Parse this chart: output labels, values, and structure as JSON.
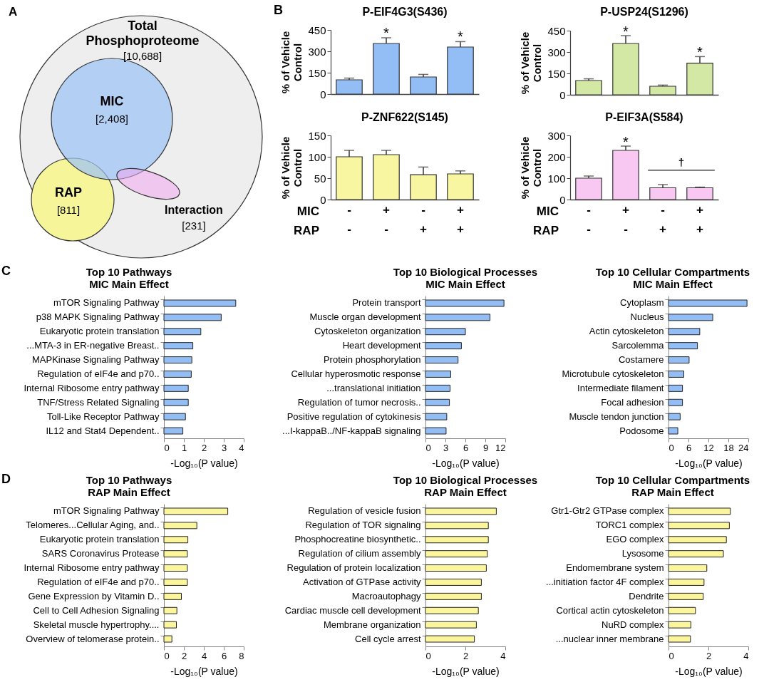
{
  "chart_data": [
    {
      "type": "other",
      "annotations": [
        "A",
        "Total Phosphoproteome",
        "[10,688]",
        "MIC",
        "[2,408]",
        "RAP",
        "[811]",
        "Interaction",
        "[231]"
      ]
    },
    {
      "type": "bar",
      "title": "P-EIF4G3(S436)",
      "ylabel": "% of Vehicle Control",
      "categories": [
        "-\n-",
        "+\n-",
        "-\n+",
        "+\n+"
      ],
      "values": [
        100,
        355,
        120,
        330
      ],
      "errors": [
        [
          100,
          112
        ],
        [
          355,
          395
        ],
        [
          120,
          138
        ],
        [
          330,
          368
        ]
      ],
      "color": "#92bef5",
      "ylim": [
        0,
        450
      ],
      "yticks": [
        0,
        150,
        300,
        450
      ],
      "tick_labels": "y",
      "annotations": [
        "B",
        {
          "text": "*",
          "x": "+\n-",
          "y": 425
        },
        {
          "text": "*",
          "x": "+\n+",
          "y": 398
        }
      ]
    },
    {
      "type": "bar",
      "title": "P-USP24(S1296)",
      "ylabel": "% of Vehicle Control",
      "categories": [
        "-\n-",
        "+\n-",
        "-\n+",
        "+\n+"
      ],
      "values": [
        100,
        360,
        60,
        222
      ],
      "errors": [
        [
          100,
          112
        ],
        [
          360,
          415
        ],
        [
          60,
          68
        ],
        [
          222,
          268
        ]
      ],
      "color": "#d4e8a6",
      "ylim": [
        0,
        450
      ],
      "yticks": [
        0,
        150,
        300,
        450
      ],
      "tick_labels": "y",
      "annotations": [
        {
          "text": "*",
          "x": "+\n-",
          "y": 440
        },
        {
          "text": "*",
          "x": "+\n+",
          "y": 295
        }
      ]
    },
    {
      "type": "bar",
      "title": "P-ZNF622(S145)",
      "ylabel": "% of Vehicle Control",
      "categories": [
        "-\n-",
        "+\n-",
        "-\n+",
        "+\n+"
      ],
      "values": [
        100,
        105,
        58,
        60
      ],
      "errors": [
        [
          100,
          115
        ],
        [
          105,
          115
        ],
        [
          58,
          76
        ],
        [
          60,
          67
        ]
      ],
      "color": "#f8f6a0",
      "ylim": [
        0,
        150
      ],
      "yticks": [
        0,
        50,
        100,
        150
      ],
      "annotations": [
        "MIC",
        "RAP"
      ]
    },
    {
      "type": "bar",
      "title": "P-EIF3A(S584)",
      "ylabel": "% of Vehicle Control",
      "categories": [
        "-\n-",
        "+\n-",
        "-\n+",
        "+\n+"
      ],
      "values": [
        100,
        230,
        55,
        55
      ],
      "errors": [
        [
          100,
          110
        ],
        [
          230,
          250
        ],
        [
          55,
          70
        ],
        [
          55,
          58
        ]
      ],
      "color": "#f8c8f2",
      "ylim": [
        0,
        300
      ],
      "yticks": [
        0,
        100,
        200,
        300
      ],
      "annotations": [
        "MIC",
        "RAP",
        "†",
        {
          "text": "*",
          "x": "+\n-",
          "y": 268
        }
      ]
    },
    {
      "type": "bar",
      "orientation": "horizontal",
      "title": "Top 10 Pathways",
      "subtitle": "MIC Main Effect",
      "xlabel": "-Log₁₀(P value)",
      "color": "#92bef5",
      "categories": [
        "mTOR Signaling Pathway",
        "p38 MAPK Signaling Pathway",
        "Eukaryotic protein translation",
        "...MTA-3 in ER-negative Breast..",
        "MAPKinase Signaling Pathway",
        "Regulation of eIF4e and p70..",
        "Internal Ribosome entry pathway",
        "TNF/Stress Related Signaling",
        "Toll-Like Receptor Pathway",
        "IL12 and Stat4 Dependent.."
      ],
      "values": [
        3.6,
        2.87,
        1.85,
        1.45,
        1.4,
        1.37,
        1.22,
        1.22,
        1.08,
        0.95
      ],
      "xlim": [
        0,
        4
      ],
      "xticks": [
        0,
        1,
        2,
        3,
        4
      ],
      "annotations": [
        "C"
      ]
    },
    {
      "type": "bar",
      "orientation": "horizontal",
      "title": "Top 10 Biological Processes",
      "subtitle": "MIC Main Effect",
      "xlabel": "-Log₁₀(P value)",
      "color": "#92bef5",
      "categories": [
        "Protein transport",
        "Muscle organ development",
        "Cytoskeleton organization",
        "Heart development",
        "Protein phosphorylation",
        "Cellular hyperosmotic response",
        "...translational initiation",
        "Regulation of tumor necrosis..",
        "Positive regulation of cytokinesis",
        "...I-kappaB../NF-kappaB signaling"
      ],
      "values": [
        11.8,
        9.7,
        6.0,
        5.4,
        4.9,
        3.8,
        3.7,
        3.6,
        3.2,
        3.1
      ],
      "xlim": [
        0,
        12
      ],
      "xticks": [
        0,
        3,
        6,
        9,
        12
      ]
    },
    {
      "type": "bar",
      "orientation": "horizontal",
      "title": "Top 10 Cellular Compartments",
      "subtitle": "MIC Main Effect",
      "xlabel": "-Log₁₀(P value)",
      "color": "#92bef5",
      "categories": [
        "Cytoplasm",
        "Nucleus",
        "Actin cytoskeleton",
        "Sarcolemma",
        "Costamere",
        "Microtubule cytoskeleton",
        "Intermediate filament",
        "Focal adhesion",
        "Muscle tendon junction",
        "Podosome"
      ],
      "values": [
        23.6,
        13.3,
        9.4,
        8.7,
        6.2,
        4.6,
        4.2,
        4.2,
        3.5,
        2.8
      ],
      "xlim": [
        0,
        24
      ],
      "xticks": [
        0,
        6,
        12,
        18,
        24
      ]
    },
    {
      "type": "bar",
      "orientation": "horizontal",
      "title": "Top 10 Pathways",
      "subtitle": "RAP Main Effect",
      "xlabel": "-Log₁₀(P value)",
      "color": "#fbf59c",
      "categories": [
        "mTOR Signaling Pathway",
        "Telomeres...Cellular Aging, and..",
        "Eukaryotic protein translation",
        "SARS Coronavirus Protease",
        "Internal Ribosome entry pathway",
        "Regulation of eIF4e and p70..",
        "Gene Expression by Vitamin D..",
        "Cell to Cell Adhesion Signaling",
        "Skeletal muscle hypertrophy....",
        "Overview of telomerase protein.."
      ],
      "values": [
        6.4,
        3.3,
        2.4,
        2.35,
        2.35,
        2.35,
        1.75,
        1.3,
        1.25,
        0.8
      ],
      "xlim": [
        0,
        8
      ],
      "xticks": [
        0,
        2,
        4,
        6,
        8
      ],
      "annotations": [
        "D"
      ]
    },
    {
      "type": "bar",
      "orientation": "horizontal",
      "title": "Top 10 Biological Processes",
      "subtitle": "RAP Main Effect",
      "xlabel": "-Log₁₀(P value)",
      "color": "#fbf59c",
      "categories": [
        "Regulation of vesicle fusion",
        "Regulation of TOR signaling",
        "Phosphocreatine biosynthetic..",
        "Regulation of cilium assembly",
        "Regulation of protein localization",
        "Activation of GTPase activity",
        "Macroautophagy",
        "Cardiac muscle cell development",
        "Membrane organization",
        "Cell cycle arrest"
      ],
      "values": [
        3.55,
        3.15,
        3.15,
        3.1,
        3.05,
        2.8,
        2.8,
        2.65,
        2.55,
        2.45
      ],
      "xlim": [
        0,
        4
      ],
      "xticks": [
        0,
        2,
        4
      ]
    },
    {
      "type": "bar",
      "orientation": "horizontal",
      "title": "Top 10 Cellular Compartments",
      "subtitle": "RAP Main Effect",
      "xlabel": "-Log₁₀(P value)",
      "color": "#fbf59c",
      "categories": [
        "Gtr1-Gtr2 GTPase complex",
        "TORC1 complex",
        "EGO complex",
        "Lysosome",
        "Endomembrane system",
        "...initiation factor 4F complex",
        "Dendrite",
        "Cortical actin cytoskeleton",
        "NuRD complex",
        "...nuclear inner membrane"
      ],
      "values": [
        3.1,
        3.05,
        2.9,
        2.75,
        1.92,
        1.78,
        1.74,
        1.35,
        1.12,
        1.1
      ],
      "xlim": [
        0,
        4
      ],
      "xticks": [
        0,
        2,
        4
      ]
    }
  ]
}
